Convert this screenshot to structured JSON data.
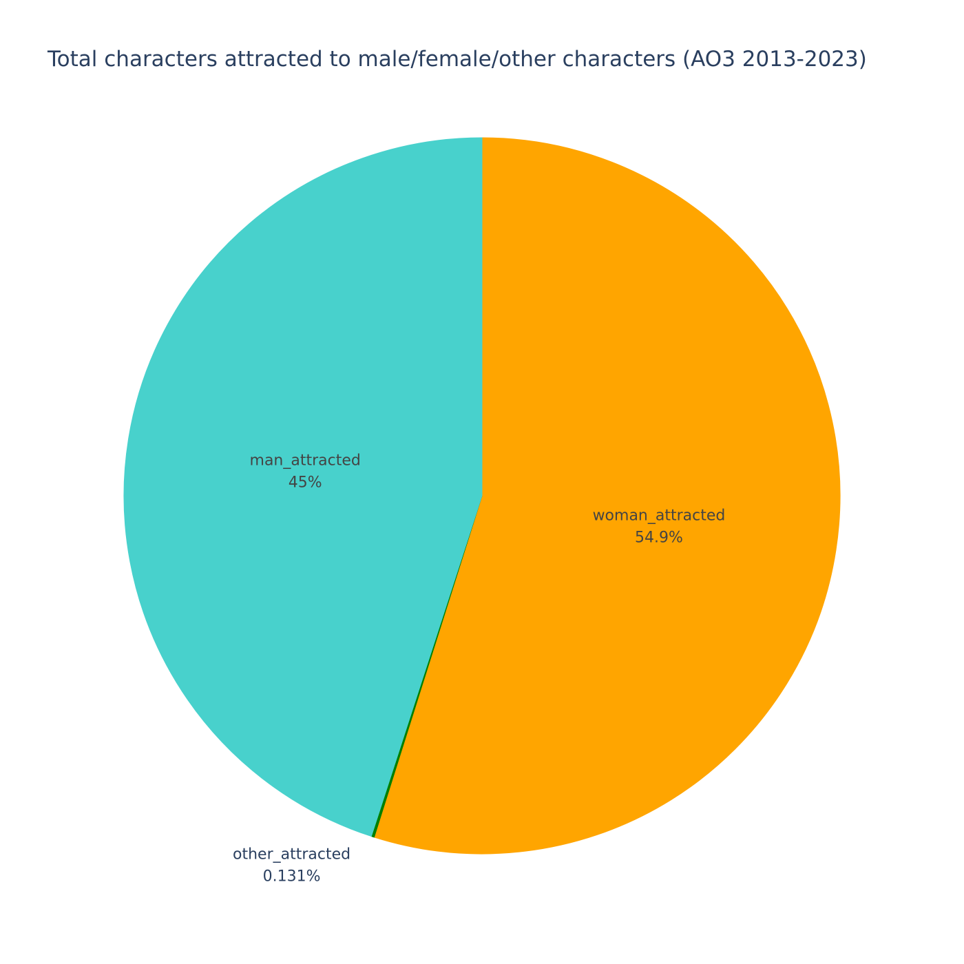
{
  "chart_data": {
    "type": "pie",
    "title": "Total characters attracted to male/female/other characters (AO3 2013-2023)",
    "slices": [
      {
        "label": "woman_attracted",
        "percent_text": "54.9%",
        "value": 54.869,
        "color": "#ffa500"
      },
      {
        "label": "other_attracted",
        "percent_text": "0.131%",
        "value": 0.131,
        "color": "#008000"
      },
      {
        "label": "man_attracted",
        "percent_text": "45%",
        "value": 45.0,
        "color": "#48d1cc"
      }
    ],
    "direction": "clockwise",
    "start_angle": "top",
    "legend": "none"
  }
}
